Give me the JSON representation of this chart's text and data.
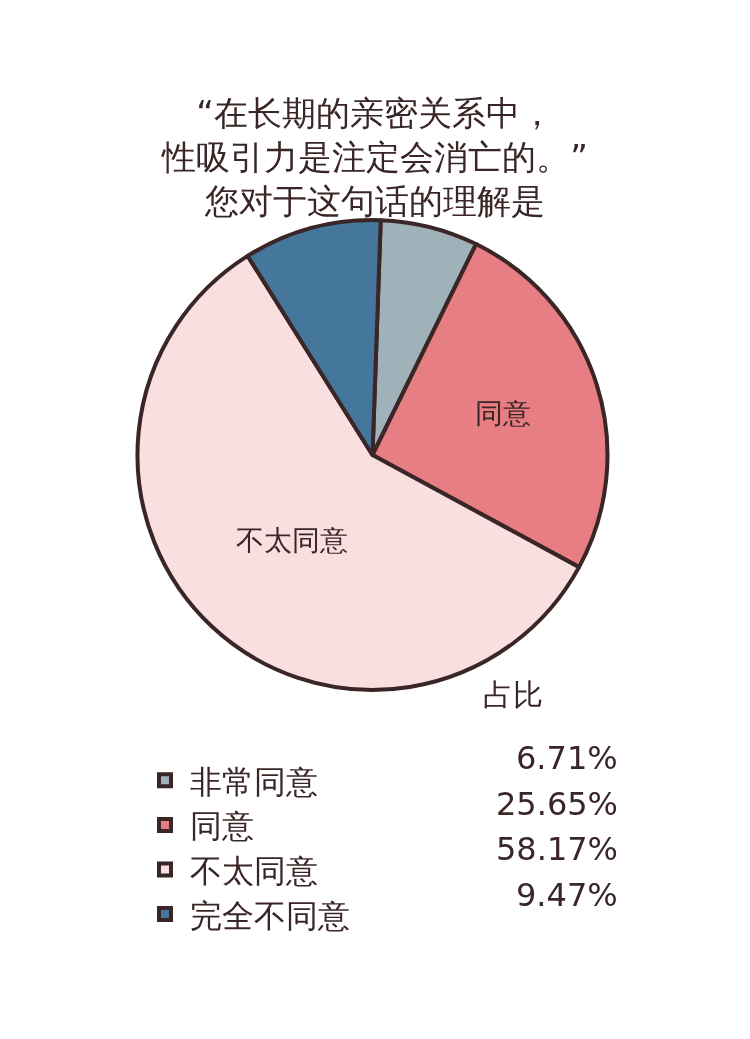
{
  "chart_data": {
    "type": "pie",
    "title": "“在长期的亲密关系中，性吸引力是注定会消亡的。”",
    "subtitle": "您对于这句话的理解是",
    "categories": [
      "非常同意",
      "同意",
      "不太同意",
      "完全不同意"
    ],
    "values": [
      6.71,
      25.65,
      58.17,
      9.47
    ],
    "value_labels": [
      "6.71%",
      "25.65%",
      "58.17%",
      "9.47%"
    ],
    "colors": [
      "#9fb2ba",
      "#e67e83",
      "#f9dfdf",
      "#45769c"
    ],
    "legend": "bottom",
    "annotations": [
      "占比",
      {
        "text": "同意",
        "x": "同意"
      },
      {
        "text": "不太同意",
        "x": "不太同意"
      }
    ]
  }
}
